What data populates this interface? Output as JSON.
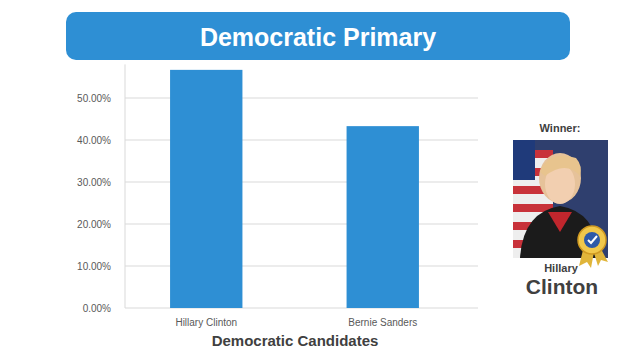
{
  "chart_data": {
    "type": "bar",
    "title": "Democratic Primary",
    "x_label": "Democratic Candidates",
    "categories": [
      "Hillary Clinton",
      "Bernie Sanders"
    ],
    "values": [
      56.7,
      43.3
    ],
    "color": "#2e8fd4",
    "ylim": [
      0,
      58
    ],
    "yticks": [
      {
        "value": 0,
        "label": "0.00%"
      },
      {
        "value": 10,
        "label": "10.00%"
      },
      {
        "value": 20,
        "label": "20.00%"
      },
      {
        "value": 30,
        "label": "30.00%"
      },
      {
        "value": 40,
        "label": "40.00%"
      },
      {
        "value": 50,
        "label": "50.00%"
      }
    ],
    "grid": true,
    "annotations": [
      "Winner:",
      "Hillary",
      "Clinton"
    ]
  }
}
